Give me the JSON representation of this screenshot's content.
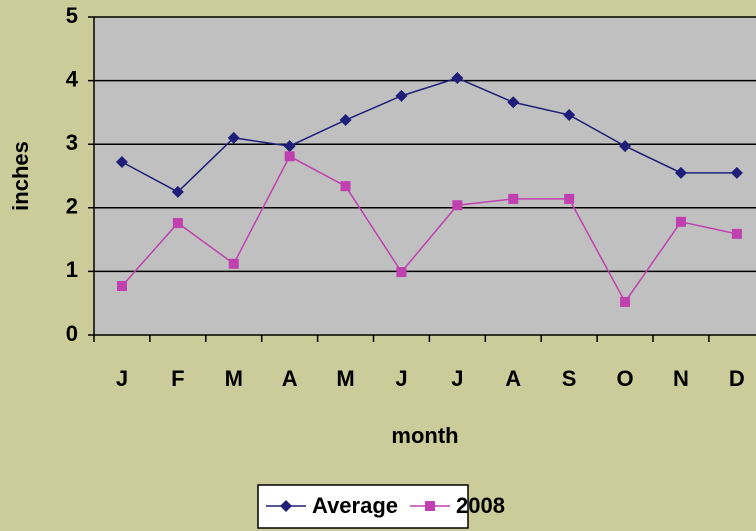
{
  "chart_data": {
    "type": "line",
    "x_label": "month",
    "y_label": "inches",
    "categories": [
      "J",
      "F",
      "M",
      "A",
      "M",
      "J",
      "J",
      "A",
      "S",
      "O",
      "N",
      "D"
    ],
    "series": [
      {
        "name": "Average",
        "color": "#1f1f7a",
        "marker": "diamond",
        "values": [
          2.72,
          2.25,
          3.1,
          2.97,
          3.38,
          3.76,
          4.04,
          3.66,
          3.46,
          2.97,
          2.55,
          2.55
        ]
      },
      {
        "name": "2008",
        "color": "#c040b0",
        "marker": "square",
        "values": [
          0.77,
          1.76,
          1.12,
          2.81,
          2.34,
          0.99,
          2.04,
          2.14,
          2.14,
          0.52,
          1.78,
          1.59
        ]
      }
    ],
    "ylim": [
      0,
      5
    ],
    "yticks": [
      0,
      1,
      2,
      3,
      4,
      5
    ],
    "grid": true,
    "legend": "bottom"
  }
}
